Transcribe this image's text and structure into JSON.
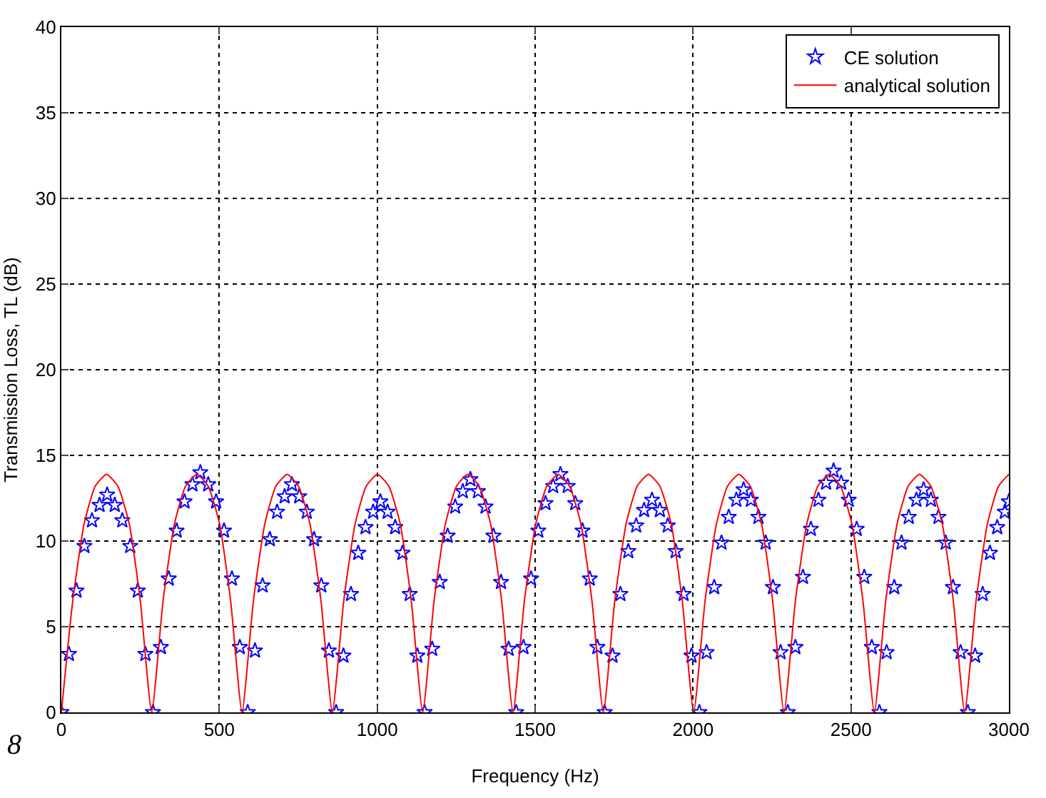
{
  "chart_data": {
    "type": "line",
    "xlabel": "Frequency (Hz)",
    "ylabel": "Transmission Loss, TL (dB)",
    "xlim": [
      0,
      3000
    ],
    "xticks": [
      0,
      500,
      1000,
      1500,
      2000,
      2500,
      3000
    ],
    "ylim": [
      0,
      40
    ],
    "yticks": [
      0,
      5,
      10,
      15,
      20,
      25,
      30,
      35,
      40
    ],
    "grid": true,
    "legend": "top right",
    "annotations": [
      "8"
    ],
    "series": [
      {
        "name": "CE solution",
        "type": "scatter",
        "marker": "star",
        "color": "#0000ff",
        "x": [
          0,
          24,
          48,
          73,
          97,
          121,
          145,
          169,
          193,
          218,
          242,
          266,
          290,
          315,
          340,
          365,
          390,
          415,
          440,
          465,
          490,
          515,
          540,
          565,
          590,
          613,
          637,
          660,
          683,
          707,
          730,
          753,
          777,
          800,
          823,
          847,
          870,
          893,
          917,
          940,
          963,
          987,
          1010,
          1033,
          1057,
          1080,
          1103,
          1127,
          1150,
          1174,
          1198,
          1223,
          1247,
          1271,
          1295,
          1319,
          1343,
          1368,
          1392,
          1416,
          1440,
          1463,
          1487,
          1510,
          1533,
          1557,
          1580,
          1603,
          1627,
          1650,
          1673,
          1697,
          1720,
          1745,
          1770,
          1795,
          1820,
          1845,
          1870,
          1895,
          1920,
          1945,
          1970,
          1995,
          2020,
          2043,
          2067,
          2090,
          2113,
          2137,
          2160,
          2183,
          2207,
          2230,
          2253,
          2277,
          2300,
          2324,
          2348,
          2373,
          2397,
          2421,
          2445,
          2469,
          2493,
          2518,
          2542,
          2566,
          2590,
          2613,
          2637,
          2660,
          2683,
          2707,
          2730,
          2753,
          2777,
          2800,
          2823,
          2847,
          2870,
          2893,
          2917,
          2940,
          2963,
          2987,
          3000
        ],
        "values": [
          0,
          3.4,
          7.1,
          9.7,
          11.2,
          12.1,
          12.7,
          12.1,
          11.2,
          9.7,
          7.1,
          3.4,
          0,
          3.8,
          7.8,
          10.6,
          12.3,
          13.3,
          14.0,
          13.3,
          12.3,
          10.6,
          7.8,
          3.8,
          0,
          3.6,
          7.4,
          10.1,
          11.7,
          12.6,
          13.3,
          12.6,
          11.7,
          10.1,
          7.4,
          3.6,
          0,
          3.3,
          6.9,
          9.3,
          10.8,
          11.7,
          12.3,
          11.7,
          10.8,
          9.3,
          6.9,
          3.3,
          0,
          3.7,
          7.6,
          10.3,
          12.0,
          12.9,
          13.6,
          12.9,
          12.0,
          10.3,
          7.6,
          3.7,
          0,
          3.8,
          7.8,
          10.6,
          12.2,
          13.2,
          13.9,
          13.2,
          12.2,
          10.6,
          7.8,
          3.8,
          0,
          3.3,
          6.9,
          9.4,
          10.9,
          11.8,
          12.4,
          11.8,
          10.9,
          9.4,
          6.9,
          3.3,
          0,
          3.5,
          7.3,
          9.9,
          11.4,
          12.4,
          13.0,
          12.4,
          11.4,
          9.9,
          7.3,
          3.5,
          0,
          3.8,
          7.9,
          10.7,
          12.4,
          13.4,
          14.1,
          13.4,
          12.4,
          10.7,
          7.9,
          3.8,
          0,
          3.5,
          7.3,
          9.9,
          11.4,
          12.4,
          13.0,
          12.4,
          11.4,
          9.9,
          7.3,
          3.5,
          0,
          3.3,
          6.9,
          9.3,
          10.8,
          11.7,
          12.3
        ]
      },
      {
        "name": "analytical solution",
        "type": "line",
        "marker": "none",
        "color": "#ff0000",
        "x": [
          0,
          36,
          72,
          107,
          143,
          179,
          215,
          250,
          286,
          322,
          358,
          393,
          429,
          465,
          501,
          536,
          572,
          608,
          644,
          679,
          715,
          751,
          787,
          822,
          858,
          894,
          930,
          965,
          1001,
          1037,
          1073,
          1108,
          1144,
          1180,
          1216,
          1251,
          1287,
          1323,
          1359,
          1394,
          1430,
          1466,
          1502,
          1537,
          1573,
          1609,
          1645,
          1680,
          1716,
          1752,
          1788,
          1823,
          1859,
          1895,
          1931,
          1966,
          2002,
          2038,
          2074,
          2109,
          2145,
          2181,
          2217,
          2252,
          2288,
          2324,
          2360,
          2395,
          2431,
          2467,
          2503,
          2538,
          2574,
          2610,
          2646,
          2681,
          2717,
          2753,
          2789,
          2824,
          2860,
          2896,
          2932,
          2967,
          3000
        ],
        "values": [
          0,
          6.5,
          11.0,
          13.2,
          13.9,
          13.2,
          11.0,
          6.5,
          0,
          6.5,
          11.0,
          13.2,
          13.9,
          13.2,
          11.0,
          6.5,
          0,
          6.5,
          11.0,
          13.2,
          13.9,
          13.2,
          11.0,
          6.5,
          0,
          6.5,
          11.0,
          13.2,
          13.9,
          13.2,
          11.0,
          6.5,
          0,
          6.5,
          11.0,
          13.2,
          13.9,
          13.2,
          11.0,
          6.5,
          0,
          6.5,
          11.0,
          13.2,
          13.9,
          13.2,
          11.0,
          6.5,
          0,
          6.5,
          11.0,
          13.2,
          13.9,
          13.2,
          11.0,
          6.5,
          0,
          6.5,
          11.0,
          13.2,
          13.9,
          13.2,
          11.0,
          6.5,
          0,
          6.5,
          11.0,
          13.2,
          13.9,
          13.2,
          11.0,
          6.5,
          0,
          6.5,
          11.0,
          13.2,
          13.9,
          13.2,
          11.0,
          6.5,
          0,
          6.5,
          11.0,
          13.2,
          13.9
        ]
      }
    ]
  }
}
